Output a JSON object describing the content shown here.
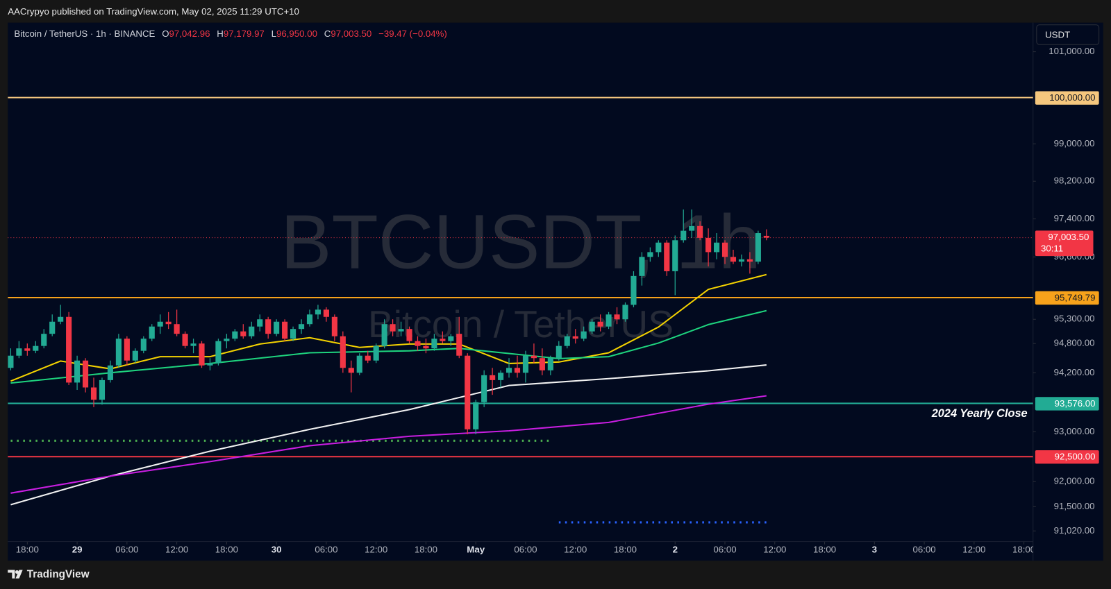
{
  "header": {
    "publisher_line": "AACrypyo published on TradingView.com, May 02, 2025 11:29 UTC+10",
    "currency_button": "USDT",
    "footer_brand": "TradingView"
  },
  "chart_data": {
    "type": "candlestick",
    "symbol_line": "Bitcoin / TetherUS · 1h · BINANCE",
    "ohlc_prefixes": [
      "O",
      "H",
      "L",
      "C"
    ],
    "ohlc_labels": [
      "97,042.96",
      "97,179.97",
      "96,950.00",
      "97,003.50"
    ],
    "change_label": "−39.47 (−0.04%)",
    "watermark": [
      "BTCUSDT, 1h",
      "Bitcoin / TetherUS"
    ],
    "log_scale": true,
    "grid": false,
    "up_color": "#22ab94",
    "down_color": "#f23645",
    "xlim": [
      -0.35,
      123.1
    ],
    "ylim": [
      90810,
      101640
    ],
    "xticks": [
      {
        "value": 2,
        "label": "18:00"
      },
      {
        "value": 8,
        "label": "29"
      },
      {
        "value": 14,
        "label": "06:00"
      },
      {
        "value": 20,
        "label": "12:00"
      },
      {
        "value": 26,
        "label": "18:00"
      },
      {
        "value": 32,
        "label": "30"
      },
      {
        "value": 38,
        "label": "06:00"
      },
      {
        "value": 44,
        "label": "12:00"
      },
      {
        "value": 50,
        "label": "18:00"
      },
      {
        "value": 56,
        "label": "May"
      },
      {
        "value": 62,
        "label": "06:00"
      },
      {
        "value": 68,
        "label": "12:00"
      },
      {
        "value": 74,
        "label": "18:00"
      },
      {
        "value": 80,
        "label": "2"
      },
      {
        "value": 86,
        "label": "06:00"
      },
      {
        "value": 92,
        "label": "12:00"
      },
      {
        "value": 98,
        "label": "18:00"
      },
      {
        "value": 104,
        "label": "3"
      },
      {
        "value": 110,
        "label": "06:00"
      },
      {
        "value": 116,
        "label": "12:00"
      },
      {
        "value": 122,
        "label": "18:00"
      }
    ],
    "yticks": [
      {
        "value": 101000,
        "label": "101,000.00"
      },
      {
        "value": 99000,
        "label": "99,000.00"
      },
      {
        "value": 98200,
        "label": "98,200.00"
      },
      {
        "value": 97400,
        "label": "97,400.00"
      },
      {
        "value": 96600,
        "label": "96,600.00"
      },
      {
        "value": 95300,
        "label": "95,300.00"
      },
      {
        "value": 94800,
        "label": "94,800.00"
      },
      {
        "value": 94200,
        "label": "94,200.00"
      },
      {
        "value": 93000,
        "label": "93,000.00"
      },
      {
        "value": 92000,
        "label": "92,000.00"
      },
      {
        "value": 91500,
        "label": "91,500.00"
      },
      {
        "value": 91020,
        "label": "91,020.00"
      }
    ],
    "open": [
      94300,
      94550,
      94700,
      94650,
      94750,
      95000,
      95250,
      95350,
      94000,
      94450,
      93900,
      93650,
      94050,
      94350,
      94900,
      94450,
      94650,
      94900,
      95150,
      95250,
      95200,
      95000,
      94750,
      94800,
      94350,
      94400,
      94850,
      94900,
      95050,
      94950,
      95150,
      95300,
      95000,
      95250,
      94900,
      95100,
      95200,
      95400,
      95500,
      95350,
      94950,
      94300,
      94200,
      94550,
      94450,
      94750,
      95200,
      95050,
      95100,
      94850,
      94750,
      94700,
      94900,
      94850,
      95000,
      94550,
      93050,
      93600,
      94150,
      94050,
      94200,
      94300,
      94200,
      94550,
      94500,
      94250,
      94500,
      94750,
      94950,
      94900,
      95050,
      95250,
      95150,
      95400,
      95300,
      95600,
      96200,
      96600,
      96700,
      96900,
      96300,
      96950,
      97150,
      97250,
      97000,
      96700,
      96900,
      96600,
      96500,
      96550,
      96500,
      97042.96
    ],
    "high": [
      94700,
      94850,
      94800,
      94850,
      95100,
      95400,
      95600,
      95450,
      94550,
      94500,
      94100,
      94100,
      94450,
      95000,
      94950,
      94700,
      94950,
      95200,
      95400,
      95450,
      95500,
      95050,
      94900,
      94850,
      94500,
      94900,
      95000,
      95100,
      95200,
      95250,
      95400,
      95350,
      95300,
      95300,
      95150,
      95300,
      95500,
      95600,
      95550,
      95400,
      95050,
      94450,
      94600,
      94650,
      94800,
      95300,
      95300,
      95250,
      95150,
      94950,
      94900,
      95000,
      95050,
      95000,
      95350,
      94600,
      93650,
      94250,
      94300,
      94250,
      94500,
      94550,
      94650,
      94800,
      94700,
      94550,
      94850,
      95000,
      95100,
      95150,
      95300,
      95400,
      95450,
      95550,
      95650,
      96300,
      96700,
      96800,
      96950,
      96950,
      97050,
      97600,
      97600,
      97350,
      97200,
      97100,
      96950,
      96750,
      96650,
      96700,
      97150,
      97179.97
    ],
    "low": [
      94250,
      94500,
      94550,
      94600,
      94700,
      94950,
      95200,
      93950,
      93850,
      93800,
      93500,
      93550,
      94000,
      94300,
      94350,
      94400,
      94600,
      94850,
      95000,
      95100,
      94950,
      94700,
      94600,
      94300,
      94250,
      94350,
      94700,
      94850,
      94900,
      94900,
      95050,
      94900,
      94950,
      94850,
      94850,
      95000,
      95150,
      95300,
      95250,
      94850,
      94200,
      93800,
      94150,
      94400,
      94400,
      94700,
      94950,
      94950,
      94800,
      94650,
      94600,
      94650,
      94800,
      94750,
      94500,
      92950,
      92950,
      93500,
      93750,
      93900,
      94100,
      94100,
      94000,
      94400,
      94150,
      94150,
      94450,
      94700,
      94800,
      94850,
      95000,
      95050,
      95100,
      95200,
      95250,
      95550,
      96000,
      96500,
      96600,
      96200,
      95800,
      96900,
      97000,
      96950,
      96400,
      96550,
      96450,
      96450,
      96400,
      96250,
      96450,
      96950
    ],
    "close": [
      94550,
      94700,
      94650,
      94750,
      95000,
      95250,
      95350,
      94000,
      94450,
      93900,
      93650,
      94050,
      94350,
      94900,
      94450,
      94650,
      94900,
      95150,
      95250,
      95200,
      95000,
      94750,
      94800,
      94350,
      94400,
      94850,
      94900,
      95050,
      94950,
      95150,
      95300,
      95000,
      95250,
      94900,
      95100,
      95200,
      95400,
      95500,
      95350,
      94950,
      94300,
      94200,
      94550,
      94450,
      94750,
      95200,
      95050,
      95100,
      94850,
      94750,
      94700,
      94900,
      94850,
      94950,
      94550,
      93050,
      93600,
      94150,
      94050,
      94200,
      94300,
      94200,
      94550,
      94500,
      94250,
      94500,
      94750,
      94950,
      94900,
      95050,
      95250,
      95150,
      95400,
      95300,
      95600,
      96200,
      96600,
      96700,
      96900,
      96300,
      96950,
      97150,
      97250,
      97000,
      96700,
      96900,
      96600,
      96500,
      96550,
      96500,
      97100,
      97003.5
    ],
    "series": [
      {
        "color": "#f5d300",
        "x": [
          0,
          6,
          12,
          18,
          24,
          30,
          36,
          42,
          48,
          54,
          60,
          66,
          72,
          78,
          84,
          91
        ],
        "values": [
          94030,
          94440,
          94280,
          94530,
          94530,
          94790,
          94920,
          94720,
          94790,
          94790,
          94390,
          94420,
          94610,
          95140,
          95920,
          96230
        ]
      },
      {
        "color": "#1ed47e",
        "x": [
          0,
          12,
          24,
          36,
          48,
          54,
          66,
          72,
          78,
          84,
          91
        ],
        "values": [
          93990,
          94200,
          94390,
          94610,
          94650,
          94700,
          94490,
          94530,
          94810,
          95190,
          95480
        ]
      },
      {
        "color": "#f2f2f2",
        "x": [
          0,
          12,
          24,
          36,
          48,
          60,
          72,
          84,
          91
        ],
        "values": [
          91540,
          92110,
          92610,
          93050,
          93450,
          93940,
          94080,
          94240,
          94360
        ]
      },
      {
        "color": "#c81ee0",
        "x": [
          0,
          12,
          24,
          36,
          48,
          60,
          72,
          84,
          91
        ],
        "values": [
          91770,
          92110,
          92400,
          92720,
          92910,
          93020,
          93190,
          93560,
          93730
        ]
      }
    ],
    "dotted_lines": [
      {
        "color": "#4caf50",
        "value": 92820,
        "x": [
          0,
          65
        ]
      },
      {
        "color": "#2962ff",
        "value": 91190,
        "x": [
          66,
          91
        ]
      }
    ],
    "levels": [
      {
        "value": 100000,
        "label": "100,000.00",
        "color": "#f5c77e"
      },
      {
        "value": 95749.79,
        "label": "95,749.79",
        "color": "#f7a21b"
      },
      {
        "value": 93576,
        "label": "93,576.00",
        "color": "#22ab94",
        "annotation": "2024 Yearly Close"
      },
      {
        "value": 92500,
        "label": "92,500.00",
        "color": "#f23645"
      }
    ],
    "last_price": {
      "value": 97003.5,
      "label": "97,003.50",
      "countdown": "30:11",
      "color": "#f23645"
    }
  }
}
